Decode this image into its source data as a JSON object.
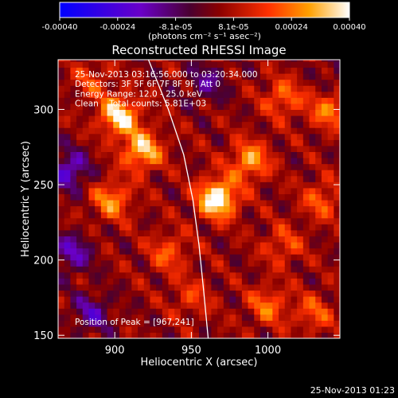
{
  "colorbar": {
    "ticks": [
      "-0.00040",
      "-0.00024",
      "-8.1e-05",
      "8.1e-05",
      "0.00024",
      "0.00040"
    ],
    "unit_label": "(photons cm⁻² s⁻¹ asec⁻²)"
  },
  "footer_timestamp": "25-Nov-2013 01:23",
  "chart_data": {
    "type": "heatmap",
    "title": "Reconstructed RHESSI Image",
    "xlabel": "Heliocentric X (arcsec)",
    "ylabel": "Heliocentric Y (arcsec)",
    "xlim": [
      863,
      1047
    ],
    "ylim": [
      148,
      333
    ],
    "x_ticks": [
      900,
      950,
      1000
    ],
    "y_ticks": [
      150,
      200,
      250,
      300
    ],
    "colorbar_range": [
      -0.0004,
      0.0004
    ],
    "annotations": [
      "25-Nov-2013 03:16:56.000 to 03:20:34.000",
      "Detectors: 3F 5F 6F 7F 8F 9F, Att 0",
      "Energy Range: 12.0 - 25.0 keV",
      "Clean    Total counts: 5.81E+03"
    ],
    "peak_label": "Position of Peak = [967,241]",
    "peak": [
      967,
      241
    ],
    "bright_sources": [
      {
        "x": 967,
        "y": 241,
        "value": 0.0004
      },
      {
        "x": 903,
        "y": 296,
        "value": 0.00034
      },
      {
        "x": 918,
        "y": 273,
        "value": 0.0003
      },
      {
        "x": 898,
        "y": 240,
        "value": 0.00022
      },
      {
        "x": 988,
        "y": 266,
        "value": 0.00025
      },
      {
        "x": 1010,
        "y": 308,
        "value": 0.00018
      },
      {
        "x": 1040,
        "y": 300,
        "value": 0.0002
      },
      {
        "x": 1035,
        "y": 240,
        "value": 0.00016
      },
      {
        "x": 1000,
        "y": 170,
        "value": 0.00018
      },
      {
        "x": 1010,
        "y": 210,
        "value": 0.00014
      },
      {
        "x": 935,
        "y": 205,
        "value": 0.00016
      },
      {
        "x": 950,
        "y": 175,
        "value": 0.00012
      },
      {
        "x": 1030,
        "y": 165,
        "value": 0.00015
      },
      {
        "x": 885,
        "y": 320,
        "value": 0.00012
      }
    ],
    "negative_regions": [
      {
        "x": 870,
        "y": 260,
        "value": -0.00024
      },
      {
        "x": 872,
        "y": 205,
        "value": -0.0002
      },
      {
        "x": 885,
        "y": 165,
        "value": -0.00018
      },
      {
        "x": 960,
        "y": 318,
        "value": -0.00015
      },
      {
        "x": 1045,
        "y": 325,
        "value": -8e-05
      }
    ],
    "limb_curve": [
      [
        922,
        333
      ],
      [
        935,
        300
      ],
      [
        945,
        270
      ],
      [
        951,
        240
      ],
      [
        955,
        210
      ],
      [
        958,
        180
      ],
      [
        961,
        148
      ]
    ]
  }
}
